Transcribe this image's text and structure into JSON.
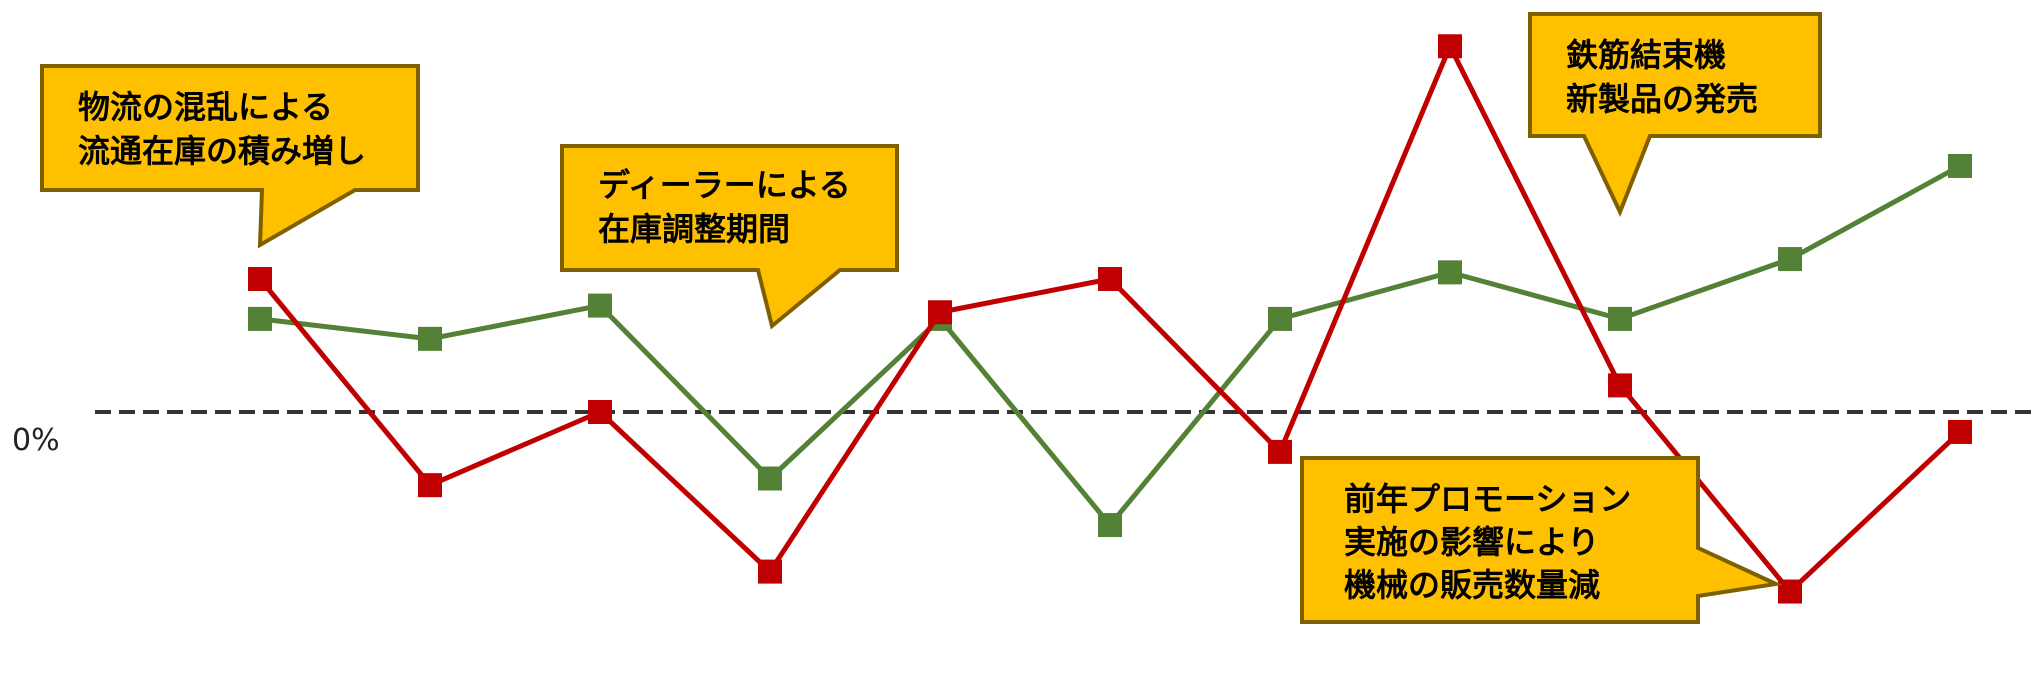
{
  "chart_data": {
    "type": "line",
    "zero_label": "0%",
    "ylim": [
      -1.3,
      2.9
    ],
    "series": [
      {
        "color": "#c00000",
        "values": [
          1.0,
          -0.55,
          0.0,
          -1.2,
          0.75,
          1.0,
          -0.3,
          2.75,
          0.2,
          -1.35,
          -0.15
        ]
      },
      {
        "color": "#538135",
        "values": [
          0.7,
          0.55,
          0.8,
          -0.5,
          0.7,
          -0.85,
          0.7,
          1.05,
          0.7,
          1.15,
          1.85
        ]
      }
    ],
    "annotations": [
      {
        "lines": [
          "物流の混乱による",
          "流通在庫の積み増し"
        ]
      },
      {
        "lines": [
          "ディーラーによる",
          "在庫調整期間"
        ]
      },
      {
        "lines": [
          "鉄筋結束機",
          "新製品の発売"
        ]
      },
      {
        "lines": [
          "前年プロモーション",
          "実施の影響により",
          "機械の販売数量減"
        ]
      }
    ],
    "colors": {
      "callout_fill": "#ffc000",
      "callout_border": "#7f6000",
      "zero_line": "#333333"
    }
  }
}
